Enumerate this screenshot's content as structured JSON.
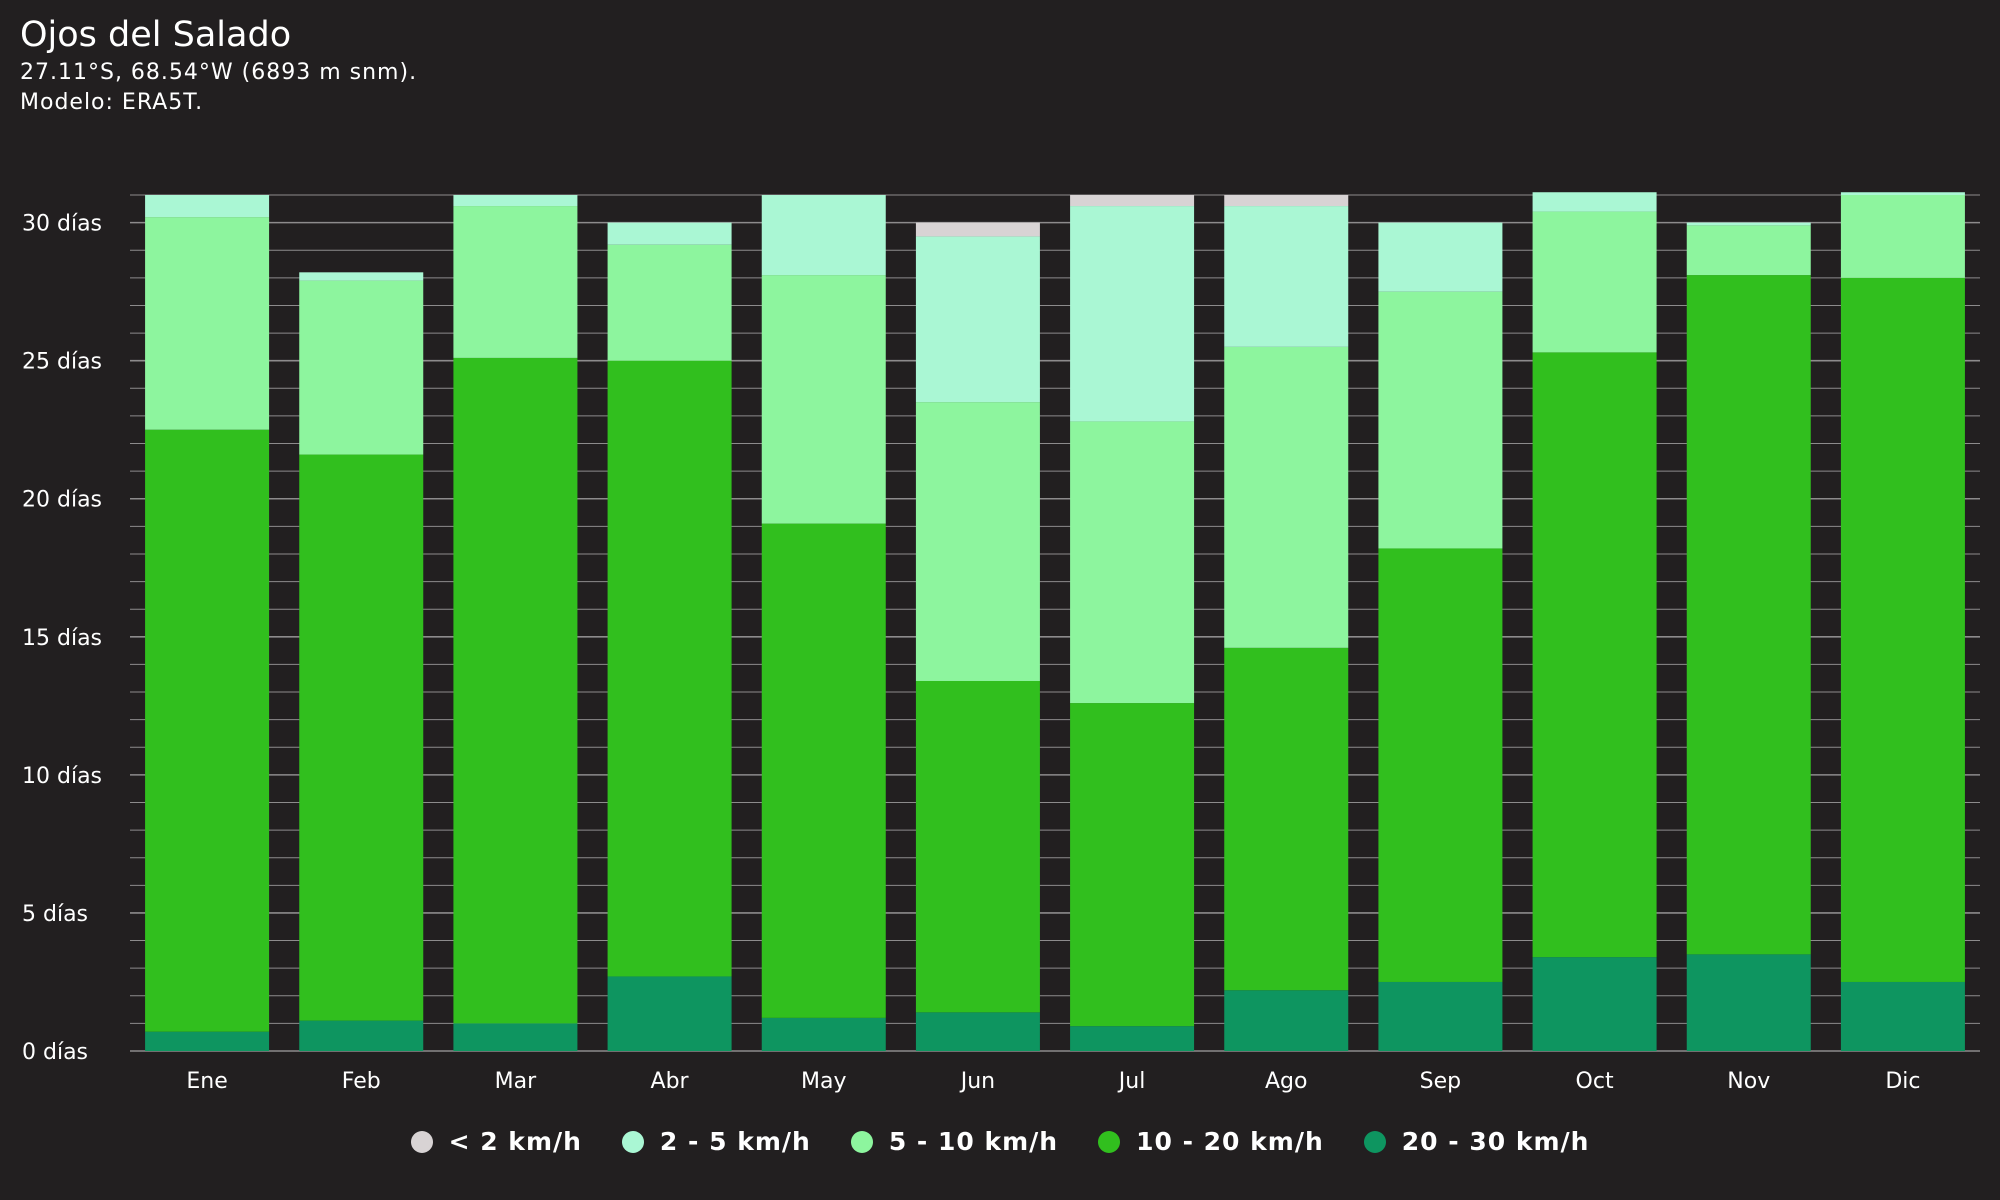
{
  "header": {
    "title": "Ojos del Salado",
    "coords": "27.11°S, 68.54°W (6893 m snm).",
    "model": "Modelo: ERA5T."
  },
  "colors": {
    "background": "#221f20",
    "grid": "#8d8b8c",
    "lt2": "#d8d3d4",
    "2to5": "#aaf7d4",
    "5to10": "#8df59e",
    "10to20": "#31bf1e",
    "20to30": "#0e9560"
  },
  "chart_data": {
    "type": "bar",
    "stacked": true,
    "categories": [
      "Ene",
      "Feb",
      "Mar",
      "Abr",
      "May",
      "Jun",
      "Jul",
      "Ago",
      "Sep",
      "Oct",
      "Nov",
      "Dic"
    ],
    "y_ticks": [
      "0 días",
      "5 días",
      "10 días",
      "15 días",
      "20 días",
      "25 días",
      "30 días"
    ],
    "ylim": [
      0,
      31
    ],
    "grid": true,
    "legend_position": "bottom-center",
    "series": [
      {
        "name": "20 - 30 km/h",
        "color_key": "20to30",
        "values": [
          0.7,
          1.1,
          1.0,
          2.7,
          1.2,
          1.4,
          0.9,
          2.2,
          2.5,
          3.4,
          3.5,
          2.5
        ]
      },
      {
        "name": "10 - 20 km/h",
        "color_key": "10to20",
        "values": [
          21.8,
          20.5,
          24.1,
          22.3,
          17.9,
          12.0,
          11.7,
          12.4,
          15.7,
          21.9,
          24.6,
          25.5
        ]
      },
      {
        "name": "5 - 10 km/h",
        "color_key": "5to10",
        "values": [
          7.7,
          6.3,
          5.5,
          4.2,
          9.0,
          10.1,
          10.2,
          10.9,
          9.3,
          5.1,
          1.8,
          3.0
        ]
      },
      {
        "name": "2 - 5 km/h",
        "color_key": "2to5",
        "values": [
          0.8,
          0.3,
          0.4,
          0.8,
          2.9,
          6.0,
          7.8,
          5.1,
          2.5,
          0.7,
          0.1,
          0.1
        ]
      },
      {
        "name": "< 2 km/h",
        "color_key": "lt2",
        "values": [
          0.0,
          0.0,
          0.0,
          0.0,
          0.0,
          0.5,
          0.4,
          0.4,
          0.0,
          0.0,
          0.0,
          0.0
        ]
      }
    ]
  },
  "legend": [
    {
      "label": "< 2 km/h",
      "color_key": "lt2"
    },
    {
      "label": "2 - 5 km/h",
      "color_key": "2to5"
    },
    {
      "label": "5 - 10 km/h",
      "color_key": "5to10"
    },
    {
      "label": "10 - 20 km/h",
      "color_key": "10to20"
    },
    {
      "label": "20 - 30 km/h",
      "color_key": "20to30"
    }
  ]
}
